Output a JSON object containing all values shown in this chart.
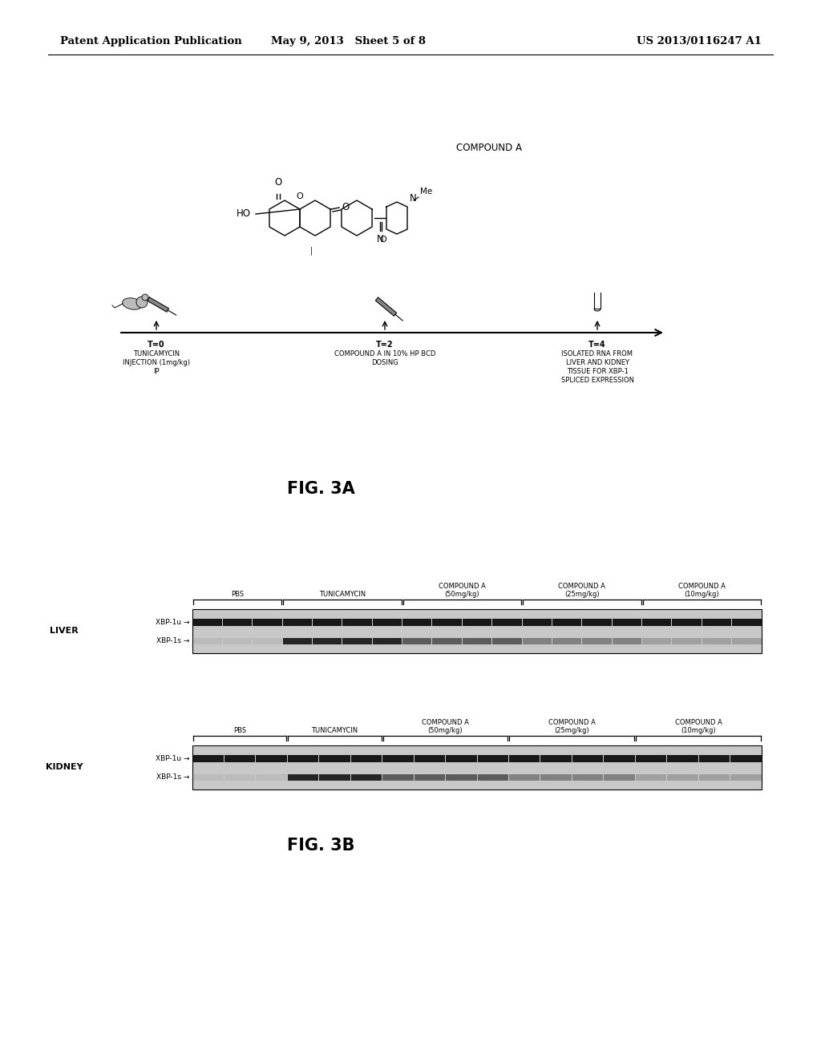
{
  "background_color": "#ffffff",
  "header_left": "Patent Application Publication",
  "header_center": "May 9, 2013   Sheet 5 of 8",
  "header_right": "US 2013/0116247 A1",
  "fig3a_label": "FIG. 3A",
  "fig3b_label": "FIG. 3B",
  "compound_a_label": "COMPOUND A",
  "timeline": {
    "t0_label": "T=0",
    "t0_subtext": "TUNICAMYCIN\nINJECTION (1mg/kg)\nIP",
    "t2_label": "T=2",
    "t2_subtext": "COMPOUND A IN 10% HP BCD\nDOSING",
    "t4_label": "T=4",
    "t4_subtext": "ISOLATED RNA FROM\nLIVER AND KIDNEY\nTISSUE FOR XBP-1\nSPLICED EXPRESSION"
  },
  "groups_liver": [
    {
      "label": "PBS",
      "lanes": 3
    },
    {
      "label": "TUNICAMYCIN",
      "lanes": 4
    },
    {
      "label": "COMPOUND A\n(50mg/kg)",
      "lanes": 4
    },
    {
      "label": "COMPOUND A\n(25mg/kg)",
      "lanes": 4
    },
    {
      "label": "COMPOUND A\n(10mg/kg)",
      "lanes": 4
    }
  ],
  "groups_kidney": [
    {
      "label": "PBS",
      "lanes": 3
    },
    {
      "label": "TUNICAMYCIN",
      "lanes": 3
    },
    {
      "label": "COMPOUND A\n(50mg/kg)",
      "lanes": 4
    },
    {
      "label": "COMPOUND A\n(25mg/kg)",
      "lanes": 4
    },
    {
      "label": "COMPOUND A\n(10mg/kg)",
      "lanes": 4
    }
  ]
}
